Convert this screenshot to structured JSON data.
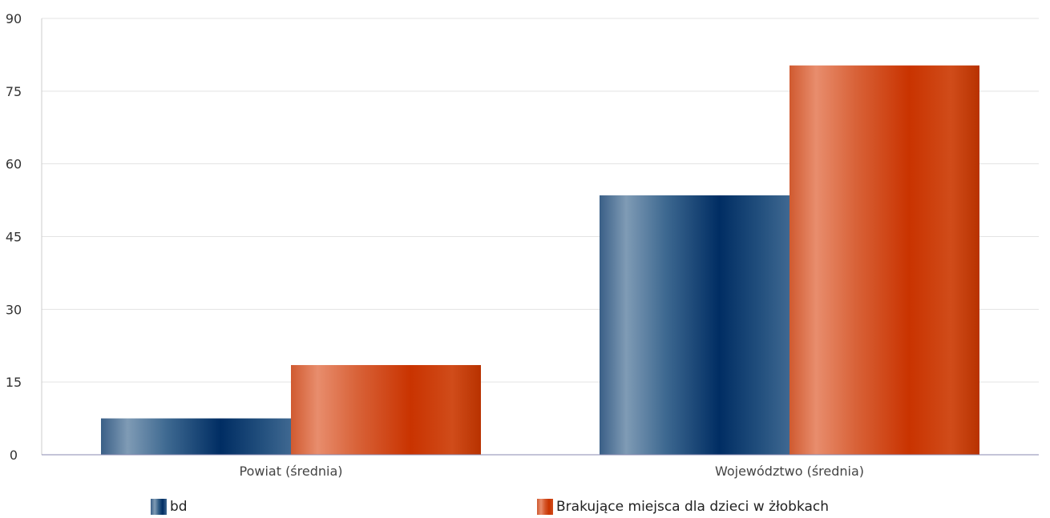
{
  "chart_data": {
    "type": "bar",
    "categories": [
      "Powiat (średnia)",
      "Województwo (średnia)"
    ],
    "series": [
      {
        "name": "bd",
        "values": [
          7.5,
          53.5
        ],
        "color": "#1e4a78"
      },
      {
        "name": "Brakujące miejsca dla dzieci w żłobkach",
        "values": [
          18.5,
          80.3
        ],
        "color": "#d9481a"
      }
    ],
    "title": "",
    "xlabel": "",
    "ylabel": "",
    "ylim": [
      0,
      90
    ],
    "yticks": [
      0,
      15,
      30,
      45,
      60,
      75,
      90
    ],
    "grid": true,
    "legend_position": "bottom"
  }
}
